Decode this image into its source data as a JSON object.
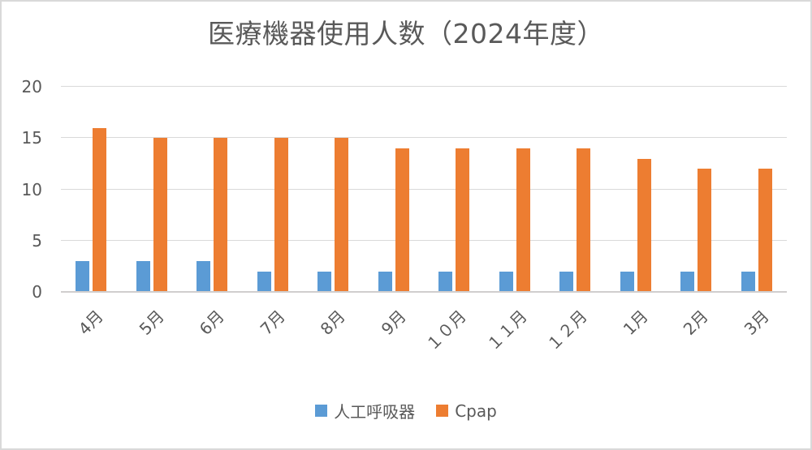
{
  "chart_data": {
    "type": "bar",
    "title": "医療機器使用人数（2024年度）",
    "categories": [
      "4月",
      "5月",
      "6月",
      "7月",
      "8月",
      "9月",
      "１０月",
      "１１月",
      "１２月",
      "1月",
      "2月",
      "3月"
    ],
    "series": [
      {
        "name": "人工呼吸器",
        "color": "#5B9BD5",
        "values": [
          3,
          3,
          3,
          2,
          2,
          2,
          2,
          2,
          2,
          2,
          2,
          2
        ]
      },
      {
        "name": "Cpap",
        "color": "#ED7D31",
        "values": [
          16,
          15,
          15,
          15,
          15,
          14,
          14,
          14,
          14,
          13,
          12,
          12
        ]
      }
    ],
    "xlabel": "",
    "ylabel": "",
    "ylim": [
      0,
      20
    ],
    "yticks": [
      0,
      5,
      10,
      15,
      20
    ],
    "grid": true,
    "legend_position": "bottom"
  },
  "colors": {
    "text": "#595959",
    "gridline": "#D9D9D9",
    "axis_line": "#D0CECE",
    "background": "#FFFFFF",
    "border": "#D9D9D9",
    "series_blue": "#5B9BD5",
    "series_orange": "#ED7D31"
  }
}
